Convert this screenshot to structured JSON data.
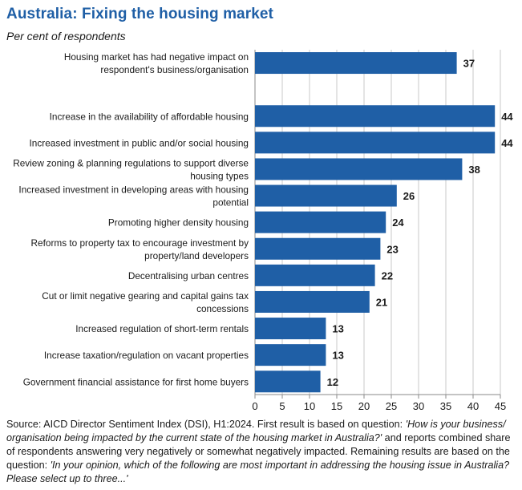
{
  "title": "Australia: Fixing the housing market",
  "subtitle": "Per cent of respondents",
  "chart_data": {
    "type": "bar",
    "orientation": "horizontal",
    "title": "Australia: Fixing the housing market",
    "subtitle": "Per cent of respondents",
    "xlabel": "",
    "ylabel": "",
    "xlim": [
      0,
      45
    ],
    "xticks": [
      "0",
      "5",
      "10",
      "15",
      "20",
      "25",
      "30",
      "35",
      "40",
      "45"
    ],
    "grid": true,
    "bar_color": "#1f5fa6",
    "groups": [
      {
        "bars": [
          {
            "label": [
              "Housing market has had negative impact on",
              "respondent's business/organisation"
            ],
            "value": 37
          }
        ]
      },
      {
        "bars": [
          {
            "label": [
              "Increase in the availability of affordable housing"
            ],
            "value": 44
          },
          {
            "label": [
              "Increased investment in public and/or social housing"
            ],
            "value": 44
          },
          {
            "label": [
              "Review zoning & planning regulations to support diverse",
              "housing types"
            ],
            "value": 38
          },
          {
            "label": [
              "Increased investment in developing areas with housing",
              "potential"
            ],
            "value": 26
          },
          {
            "label": [
              "Promoting higher density housing"
            ],
            "value": 24
          },
          {
            "label": [
              "Reforms to property tax to encourage investment by",
              "property/land developers"
            ],
            "value": 23
          },
          {
            "label": [
              "Decentralising urban centres"
            ],
            "value": 22
          },
          {
            "label": [
              "Cut or limit negative gearing and capital gains tax",
              "concessions"
            ],
            "value": 21
          },
          {
            "label": [
              "Increased regulation  of short-term rentals"
            ],
            "value": 13
          },
          {
            "label": [
              "Increase taxation/regulation on vacant properties"
            ],
            "value": 13
          },
          {
            "label": [
              "Government financial assistance for first home buyers"
            ],
            "value": 12
          }
        ]
      }
    ]
  },
  "source": {
    "p1": "Source: AICD Director Sentiment Index (DSI), H1:2024. First result is based on question: ",
    "q1": "'How is your business/ organisation being impacted by the current state of the housing market in Australia?'",
    "p2": " and reports combined share of respondents answering very negatively or somewhat negatively impacted. Remaining results are based on the question: ",
    "q2": "'In your opinion, which of the following are most important in addressing the housing issue in Australia? Please select up to three...'"
  }
}
